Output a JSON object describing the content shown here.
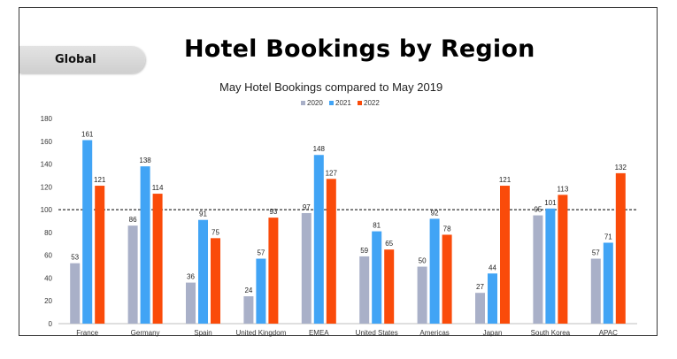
{
  "badge": {
    "label": "Global"
  },
  "chart_data": {
    "type": "bar",
    "title": "Hotel Bookings by Region",
    "subtitle": "May Hotel Bookings compared to May 2019",
    "categories": [
      "France",
      "Germany",
      "Spain",
      "United Kingdom",
      "EMEA",
      "United States",
      "Americas",
      "Japan",
      "South Korea",
      "APAC"
    ],
    "series": [
      {
        "name": "2020",
        "color": "#a9b0c8",
        "values": [
          53,
          86,
          36,
          24,
          97,
          59,
          50,
          27,
          95,
          57
        ]
      },
      {
        "name": "2021",
        "color": "#41a4f5",
        "values": [
          161,
          138,
          91,
          57,
          148,
          81,
          92,
          44,
          101,
          71
        ]
      },
      {
        "name": "2022",
        "color": "#fa4b0a",
        "values": [
          121,
          114,
          75,
          93,
          127,
          65,
          78,
          121,
          113,
          132
        ]
      }
    ],
    "ylim": [
      0,
      180
    ],
    "yticks": [
      0,
      20,
      40,
      60,
      80,
      100,
      120,
      140,
      160,
      180
    ],
    "reference_line": 100,
    "grid": false,
    "legend": "top-center"
  }
}
